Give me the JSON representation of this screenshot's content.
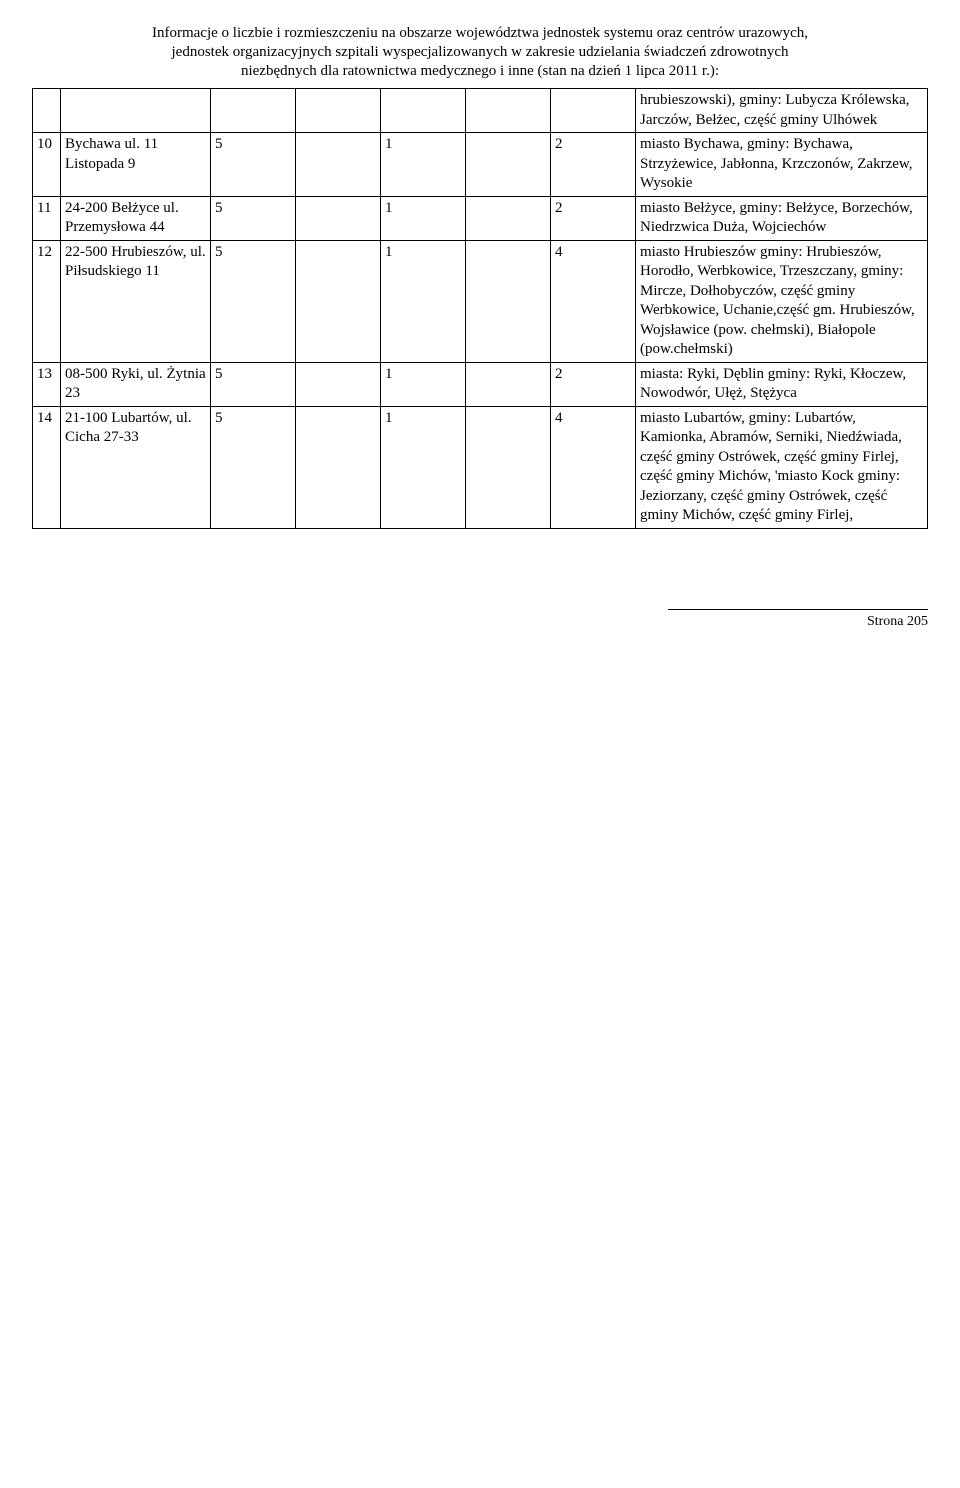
{
  "header": {
    "line1": "Informacje o liczbie i rozmieszczeniu na obszarze województwa jednostek systemu oraz centrów urazowych,",
    "line2": "jednostek organizacyjnych szpitali wyspecjalizowanych w zakresie udzielania świadczeń zdrowotnych",
    "line3": "niezbędnych dla ratownictwa medycznego i inne (stan na dzień 1 lipca 2011 r.):"
  },
  "rows": [
    {
      "idx": "",
      "addr": "",
      "c2": "",
      "c3": "",
      "c4": "",
      "c5": "",
      "c6": "",
      "desc": "hrubieszowski), gminy: Lubycza Królewska, Jarczów, Bełżec, część  gminy Ulhówek"
    },
    {
      "idx": "10",
      "addr": "Bychawa ul. 11 Listopada 9",
      "c2": "5",
      "c3": "",
      "c4": "1",
      "c5": "",
      "c6": "2",
      "desc": "miasto Bychawa, gminy: Bychawa, Strzyżewice, Jabłonna, Krzczonów, Zakrzew, Wysokie"
    },
    {
      "idx": "11",
      "addr": "24-200 Bełżyce ul. Przemysłowa 44",
      "c2": "5",
      "c3": "",
      "c4": "1",
      "c5": "",
      "c6": "2",
      "desc": "miasto Bełżyce, gminy: Bełżyce, Borzechów, Niedrzwica Duża, Wojciechów"
    },
    {
      "idx": "12",
      "addr": "22-500 Hrubieszów, ul. Piłsudskiego 11",
      "c2": "5",
      "c3": "",
      "c4": "1",
      "c5": "",
      "c6": "4",
      "desc": "miasto Hrubieszów gminy: Hrubieszów, Horodło, Werbkowice, Trzeszczany, gminy: Mircze, Dołhobyczów, część gminy Werbkowice, Uchanie,część gm. Hrubieszów, Wojsławice (pow. chełmski), Białopole (pow.chełmski)"
    },
    {
      "idx": "13",
      "addr": "08-500 Ryki, ul. Żytnia 23",
      "c2": "5",
      "c3": "",
      "c4": "1",
      "c5": "",
      "c6": "2",
      "desc": "miasta: Ryki, Dęblin gminy: Ryki, Kłoczew, Nowodwór, Ułęż, Stężyca"
    },
    {
      "idx": "14",
      "addr": "21-100 Lubartów, ul. Cicha 27-33",
      "c2": "5",
      "c3": "",
      "c4": "1",
      "c5": "",
      "c6": "4",
      "desc": "miasto Lubartów, gminy: Lubartów, Kamionka, Abramów, Serniki, Niedźwiada, część gminy Ostrówek, część gminy Firlej, część gminy Michów, 'miasto Kock gminy:  Jeziorzany, część gminy Ostrówek, część gminy Michów, część gminy Firlej,"
    }
  ],
  "footer": {
    "page": "Strona 205"
  }
}
